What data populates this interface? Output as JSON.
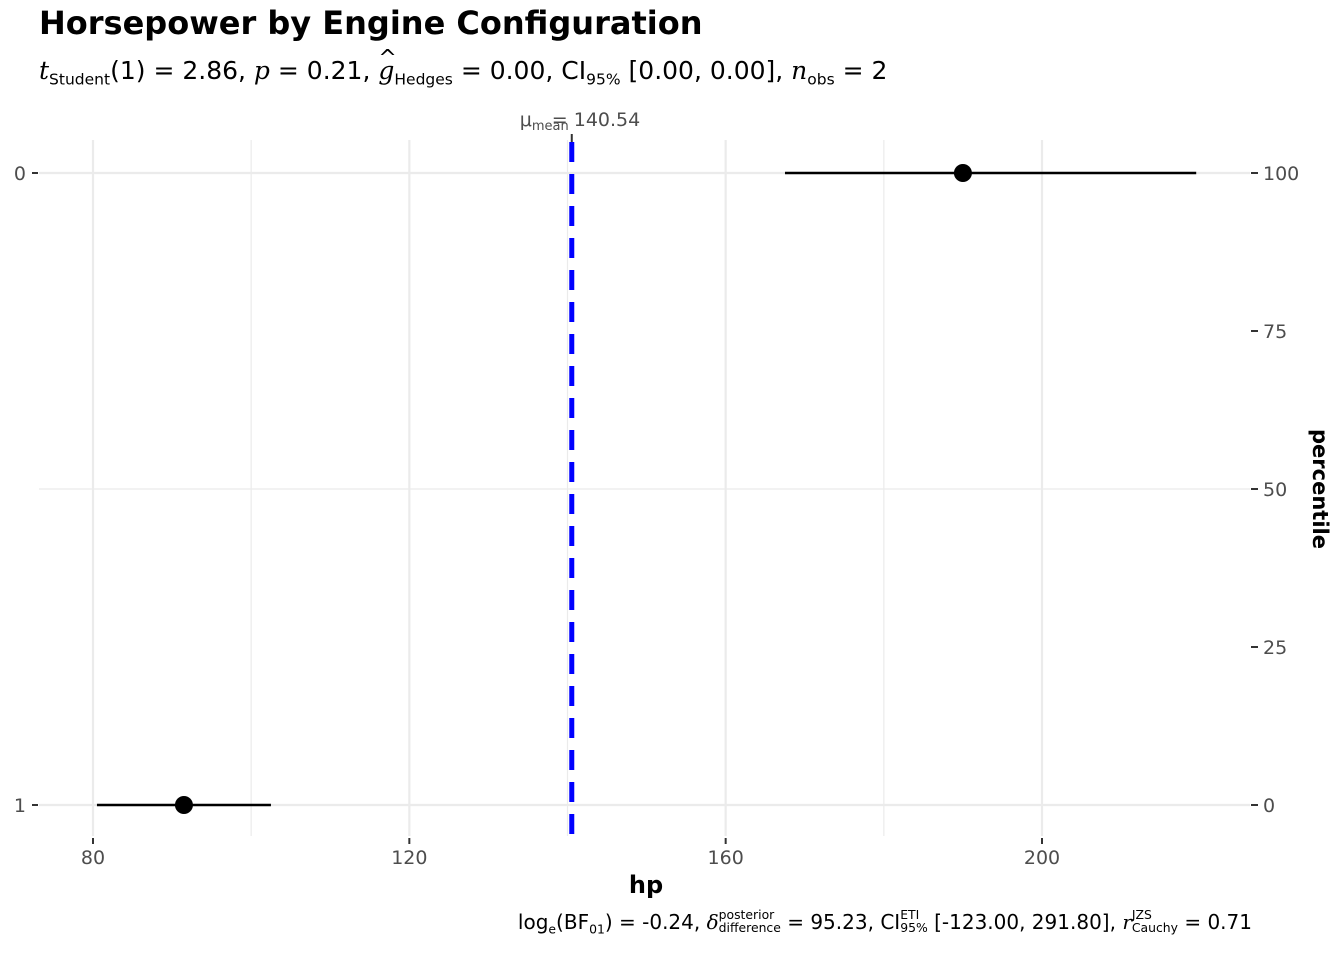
{
  "chart_data": {
    "type": "scatter",
    "title": "Horsepower by Engine Configuration",
    "subtitle": {
      "stat": "t",
      "stat_sub": "Student",
      "df": "(1)",
      "stat_value": "= 2.86,",
      "p_label": "p",
      "p_value": "= 0.21,",
      "effect_label": "g",
      "effect_sub": "Hedges",
      "effect_value": "= 0.00,",
      "ci_label": "CI",
      "ci_sub": "95%",
      "ci_value": "[0.00, 0.00],",
      "n_label": "n",
      "n_sub": "obs",
      "n_value": "= 2"
    },
    "caption": {
      "bf_label": "log",
      "bf_sub_e": "e",
      "bf_open": "(BF",
      "bf_sub": "01",
      "bf_value": ") = -0.24,",
      "delta": "δ",
      "delta_sup": "posterior",
      "delta_sub": "difference",
      "delta_value": "= 95.23,",
      "ci_label": "CI",
      "ci_sup": "ETI",
      "ci_sub": "95%",
      "ci_value": "[-123.00, 291.80],",
      "r_label": "r",
      "r_sup": "JZS",
      "r_sub": "Cauchy",
      "r_value": "= 0.71"
    },
    "xlabel": "hp",
    "ylabel_right": "percentile",
    "xlim": [
      73,
      226
    ],
    "x_ticks": [
      80,
      120,
      160,
      200
    ],
    "categories": [
      "0",
      "1"
    ],
    "right_ticks": [
      "100",
      "75",
      "50",
      "25",
      "0"
    ],
    "points": [
      {
        "category": "0",
        "x": 190,
        "xmin": 167.5,
        "xmax": 219.5
      },
      {
        "category": "1",
        "x": 91.5,
        "xmin": 80.5,
        "xmax": 102.5
      }
    ],
    "mean_line": {
      "x": 140.54,
      "label_sub": "mean",
      "label_value": "= 140.54",
      "color": "#0000ff"
    },
    "grid": true
  }
}
